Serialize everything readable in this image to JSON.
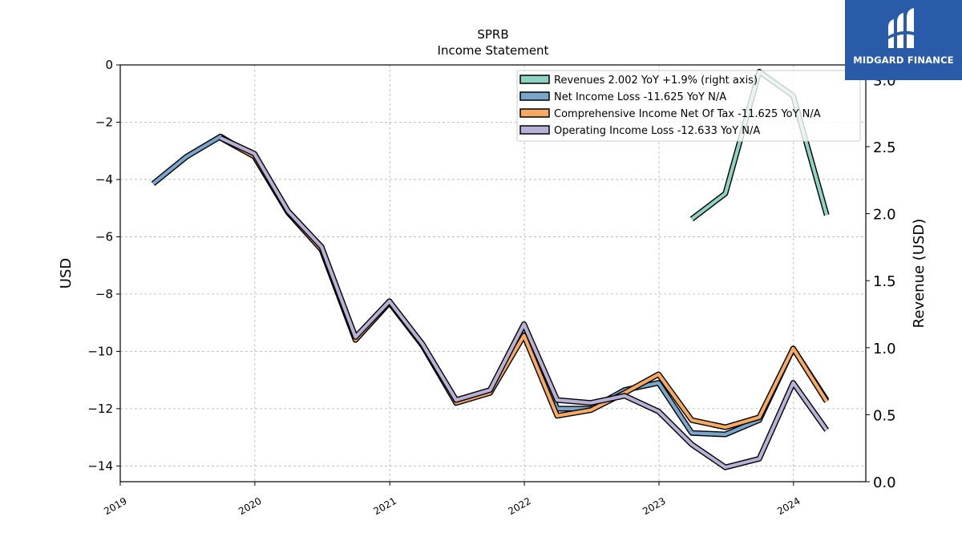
{
  "chart_data": {
    "type": "line",
    "title": "SPRB",
    "subtitle": "Income Statement",
    "ylabel_left": "USD",
    "ylabel_right": "Revenue (USD)",
    "ylim_left": [
      -14.55,
      0
    ],
    "ylim_right": [
      0,
      3.11
    ],
    "left_ticks": [
      0,
      -2,
      -4,
      -6,
      -8,
      -10,
      -12,
      -14
    ],
    "right_ticks": [
      0.0,
      0.5,
      1.0,
      1.5,
      2.0,
      2.5,
      3.0
    ],
    "right_tick_labels": [
      "0.0",
      "0.5",
      "1.0",
      "1.5",
      "2.0",
      "2.5",
      "3.0"
    ],
    "x_ticks": [
      "2019",
      "2020",
      "2021",
      "2022",
      "2023",
      "2024"
    ],
    "xlim": [
      "2019-01-01",
      "2024-07-15"
    ],
    "grid": true,
    "legend_position": "top-right",
    "series": [
      {
        "name": "Net Income Loss",
        "legend": "Net Income Loss  -11.625 YoY N/A",
        "axis": "left",
        "color": "#7ba6cc",
        "dates": [
          "2019-03-31",
          "2019-06-30",
          "2019-09-30",
          "2019-12-31",
          "2020-03-31",
          "2020-06-30",
          "2020-09-30",
          "2020-12-31",
          "2021-03-31",
          "2021-06-30",
          "2021-09-30",
          "2021-12-31",
          "2022-03-31",
          "2022-06-30",
          "2022-09-30",
          "2022-12-31",
          "2023-03-31",
          "2023-06-30",
          "2023-09-30",
          "2023-12-31",
          "2024-03-31"
        ],
        "values": [
          -4.15,
          -3.2,
          -2.5,
          -3.2,
          -5.15,
          -6.45,
          -9.6,
          -8.3,
          -9.8,
          -11.8,
          -11.45,
          -9.2,
          -12.0,
          -12.0,
          -11.35,
          -11.1,
          -12.85,
          -12.9,
          -12.4,
          -9.9,
          -11.7
        ]
      },
      {
        "name": "Comprehensive Income Net Of Tax",
        "legend": "Comprehensive Income Net Of Tax  -11.625 YoY N/A",
        "axis": "left",
        "color": "#f5a962",
        "dates": [
          "2019-09-30",
          "2019-12-31",
          "2020-03-31",
          "2020-06-30",
          "2020-09-30",
          "2020-12-31",
          "2021-03-31",
          "2021-06-30",
          "2021-09-30",
          "2021-12-31",
          "2022-03-31",
          "2022-06-30",
          "2022-09-30",
          "2022-12-31",
          "2023-03-31",
          "2023-06-30",
          "2023-09-30",
          "2023-12-31",
          "2024-03-31"
        ],
        "values": [
          -2.55,
          -3.2,
          -5.15,
          -6.45,
          -9.6,
          -8.3,
          -9.8,
          -11.8,
          -11.45,
          -9.45,
          -12.25,
          -12.05,
          -11.45,
          -10.8,
          -12.4,
          -12.65,
          -12.3,
          -9.9,
          -11.75
        ]
      },
      {
        "name": "Operating Income Loss",
        "legend": "Operating Income Loss  -12.633 YoY N/A",
        "axis": "left",
        "color": "#b9b0d6",
        "dates": [
          "2019-09-30",
          "2019-12-31",
          "2020-03-31",
          "2020-06-30",
          "2020-09-30",
          "2020-12-31",
          "2021-03-31",
          "2021-06-30",
          "2021-09-30",
          "2021-12-31",
          "2022-03-31",
          "2022-06-30",
          "2022-09-30",
          "2022-12-31",
          "2023-03-31",
          "2023-06-30",
          "2023-09-30",
          "2023-12-31",
          "2024-03-31"
        ],
        "values": [
          -2.55,
          -3.1,
          -5.1,
          -6.35,
          -9.5,
          -8.25,
          -9.75,
          -11.7,
          -11.35,
          -9.05,
          -11.7,
          -11.8,
          -11.55,
          -12.1,
          -13.25,
          -14.05,
          -13.75,
          -11.1,
          -12.75
        ]
      },
      {
        "name": "Revenues",
        "legend": "Revenues  2.002 YoY +1.9% (right axis)",
        "axis": "right",
        "color": "#8ed3c4",
        "dates": [
          "2023-03-31",
          "2023-06-30",
          "2023-09-30",
          "2023-12-31",
          "2024-03-31"
        ],
        "values": [
          1.96,
          2.15,
          3.06,
          2.88,
          1.99
        ]
      }
    ],
    "legend_order": [
      "Revenues",
      "Net Income Loss",
      "Comprehensive Income Net Of Tax",
      "Operating Income Loss"
    ]
  },
  "branding": {
    "name": "MIDGARD FINANCE",
    "background": "#2a5ba8"
  }
}
